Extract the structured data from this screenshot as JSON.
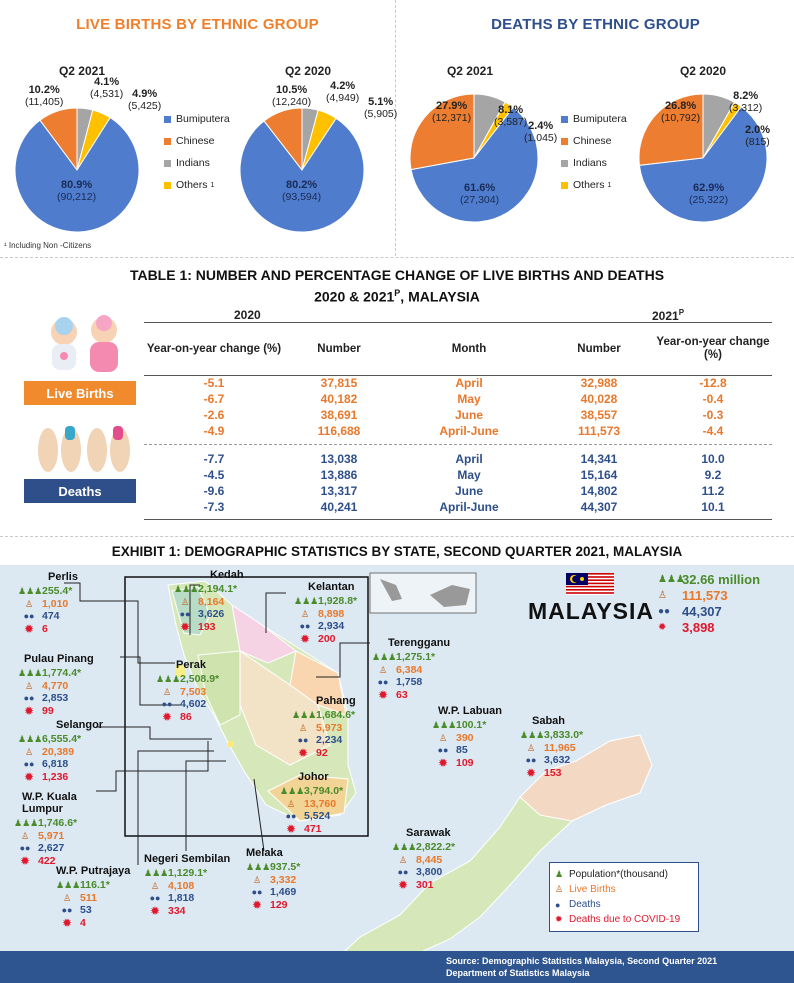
{
  "births_panel": {
    "title": "LIVE BIRTHS  BY ETHNIC GROUP",
    "title_color": "#f07f2c",
    "footnote": "¹ Including Non -Citizens",
    "legend": [
      {
        "label": "Bumiputera",
        "color": "#4f7ccd"
      },
      {
        "label": "Chinese",
        "color": "#ed7d31"
      },
      {
        "label": "Indians",
        "color": "#a5a5a5"
      },
      {
        "label": "Others",
        "sup": "1",
        "color": "#ffc000"
      }
    ],
    "pies": [
      {
        "year": "Q2 2021",
        "slices": [
          {
            "group": "Bumiputera",
            "pct_value": 80.9,
            "pct": "80.9%",
            "count": "(90,212)"
          },
          {
            "group": "Chinese",
            "pct_value": 10.2,
            "pct": "10.2%",
            "count": "(11,405)"
          },
          {
            "group": "Indians",
            "pct_value": 4.1,
            "pct": "4.1%",
            "count": "(4,531)"
          },
          {
            "group": "Others",
            "pct_value": 4.9,
            "pct": "4.9%",
            "count": "(5,425)"
          }
        ]
      },
      {
        "year": "Q2 2020",
        "slices": [
          {
            "group": "Bumiputera",
            "pct_value": 80.2,
            "pct": "80.2%",
            "count": "(93,594)"
          },
          {
            "group": "Chinese",
            "pct_value": 10.5,
            "pct": "10.5%",
            "count": "(12,240)"
          },
          {
            "group": "Indians",
            "pct_value": 4.2,
            "pct": "4.2%",
            "count": "(4,949)"
          },
          {
            "group": "Others",
            "pct_value": 5.1,
            "pct": "5.1%",
            "count": "(5,905)"
          }
        ]
      }
    ]
  },
  "deaths_panel": {
    "title": "DEATHS BY ETHNIC GROUP",
    "title_color": "#2e4f8a",
    "legend": [
      {
        "label": "Bumiputera",
        "color": "#4f7ccd"
      },
      {
        "label": "Chinese",
        "color": "#ed7d31"
      },
      {
        "label": "Indians",
        "color": "#a5a5a5"
      },
      {
        "label": "Others",
        "sup": "1",
        "color": "#ffc000"
      }
    ],
    "pies": [
      {
        "year": "Q2 2021",
        "slices": [
          {
            "group": "Bumiputera",
            "pct_value": 61.6,
            "pct": "61.6%",
            "count": "(27,304)"
          },
          {
            "group": "Chinese",
            "pct_value": 27.9,
            "pct": "27.9%",
            "count": "(12,371)"
          },
          {
            "group": "Indians",
            "pct_value": 8.1,
            "pct": "8.1%",
            "count": "(3,587)"
          },
          {
            "group": "Others",
            "pct_value": 2.4,
            "pct": "2.4%",
            "count": "(1,045)"
          }
        ]
      },
      {
        "year": "Q2 2020",
        "slices": [
          {
            "group": "Bumiputera",
            "pct_value": 62.9,
            "pct": "62.9%",
            "count": "(25,322)"
          },
          {
            "group": "Chinese",
            "pct_value": 26.8,
            "pct": "26.8%",
            "count": "(10,792)"
          },
          {
            "group": "Indians",
            "pct_value": 8.2,
            "pct": "8.2%",
            "count": "(3,312)"
          },
          {
            "group": "Others",
            "pct_value": 2.0,
            "pct": "2.0%",
            "count": "(815)"
          }
        ]
      }
    ]
  },
  "table": {
    "title_line1": "TABLE 1: NUMBER AND PERCENTAGE CHANGE OF LIVE BIRTHS AND DEATHS",
    "title_line2_a": "2020 & 2021",
    "title_line2_sup": "P",
    "title_line2_b": ", MALAYSIA",
    "year_left": "2020",
    "year_right": "2021",
    "year_right_sup": "P",
    "headers": [
      "Year-on-year change (%)",
      "Number",
      "Month",
      "Number",
      "Year-on-year change (%)"
    ],
    "live_births_label": "Live Births",
    "deaths_label": "Deaths",
    "births_rows": [
      [
        "-5.1",
        "37,815",
        "April",
        "32,988",
        "-12.8"
      ],
      [
        "-6.7",
        "40,182",
        "May",
        "40,028",
        "-0.4"
      ],
      [
        "-2.6",
        "38,691",
        "June",
        "38,557",
        "-0.3"
      ],
      [
        "-4.9",
        "116,688",
        "April-June",
        "111,573",
        "-4.4"
      ]
    ],
    "deaths_rows": [
      [
        "-7.7",
        "13,038",
        "April",
        "14,341",
        "10.0"
      ],
      [
        "-4.5",
        "13,886",
        "May",
        "15,164",
        "9.2"
      ],
      [
        "-9.6",
        "13,317",
        "June",
        "14,802",
        "11.2"
      ],
      [
        "-7.3",
        "40,241",
        "April-June",
        "44,307",
        "10.1"
      ]
    ]
  },
  "exhibit": {
    "title": "EXHIBIT 1: DEMOGRAPHIC  STATISTICS  BY STATE, SECOND  QUARTER 2021, MALAYSIA",
    "country": "MALAYSIA",
    "totals": {
      "population": "32.66  million",
      "births": "111,573",
      "deaths": "44,307",
      "covid": "3,898"
    },
    "states": [
      {
        "name": "Perlis",
        "pop": "255.4*",
        "births": "1,010",
        "deaths": "474",
        "covid": "6"
      },
      {
        "name": "Kedah",
        "pop": "2,194.1*",
        "births": "8,164",
        "deaths": "3,626",
        "covid": "193"
      },
      {
        "name": "Kelantan",
        "pop": "1,928.8*",
        "births": "8,898",
        "deaths": "2,934",
        "covid": "200"
      },
      {
        "name": "Terengganu",
        "pop": "1,275.1*",
        "births": "6,384",
        "deaths": "1,758",
        "covid": "63"
      },
      {
        "name": "Pulau Pinang",
        "pop": "1,774.4*",
        "births": "4,770",
        "deaths": "2,853",
        "covid": "99"
      },
      {
        "name": "Perak",
        "pop": "2,508.9*",
        "births": "7,503",
        "deaths": "4,602",
        "covid": "86"
      },
      {
        "name": "Pahang",
        "pop": "1,684.6*",
        "births": "5,973",
        "deaths": "2,234",
        "covid": "92"
      },
      {
        "name": "Selangor",
        "pop": "6,555.4*",
        "births": "20,389",
        "deaths": "6,818",
        "covid": "1,236"
      },
      {
        "name": "W.P. Labuan",
        "pop": "100.1*",
        "births": "390",
        "deaths": "85",
        "covid": "109"
      },
      {
        "name": "Sabah",
        "pop": "3,833.0*",
        "births": "11,965",
        "deaths": "3,632",
        "covid": "153"
      },
      {
        "name": "Johor",
        "pop": "3,794.0*",
        "births": "13,760",
        "deaths": "5,524",
        "covid": "471"
      },
      {
        "name": "W.P. Kuala Lumpur",
        "pop": "1,746.6*",
        "births": "5,971",
        "deaths": "2,627",
        "covid": "422"
      },
      {
        "name": "W.P. Putrajaya",
        "pop": "116.1*",
        "births": "511",
        "deaths": "53",
        "covid": "4"
      },
      {
        "name": "Negeri Sembilan",
        "pop": "1,129.1*",
        "births": "4,108",
        "deaths": "1,818",
        "covid": "334"
      },
      {
        "name": "Melaka",
        "pop": "937.5*",
        "births": "3,332",
        "deaths": "1,469",
        "covid": "129"
      },
      {
        "name": "Sarawak",
        "pop": "2,822.2*",
        "births": "8,445",
        "deaths": "3,800",
        "covid": "301"
      }
    ],
    "legend": {
      "population": "Population*(thousand)",
      "births": "Live Births",
      "deaths": "Deaths",
      "covid": "Deaths due to COVID-19"
    },
    "source_line1": "Source: Demographic  Statistics Malaysia, Second Quarter 2021",
    "source_line2": "Department  of Statistics Malaysia"
  }
}
